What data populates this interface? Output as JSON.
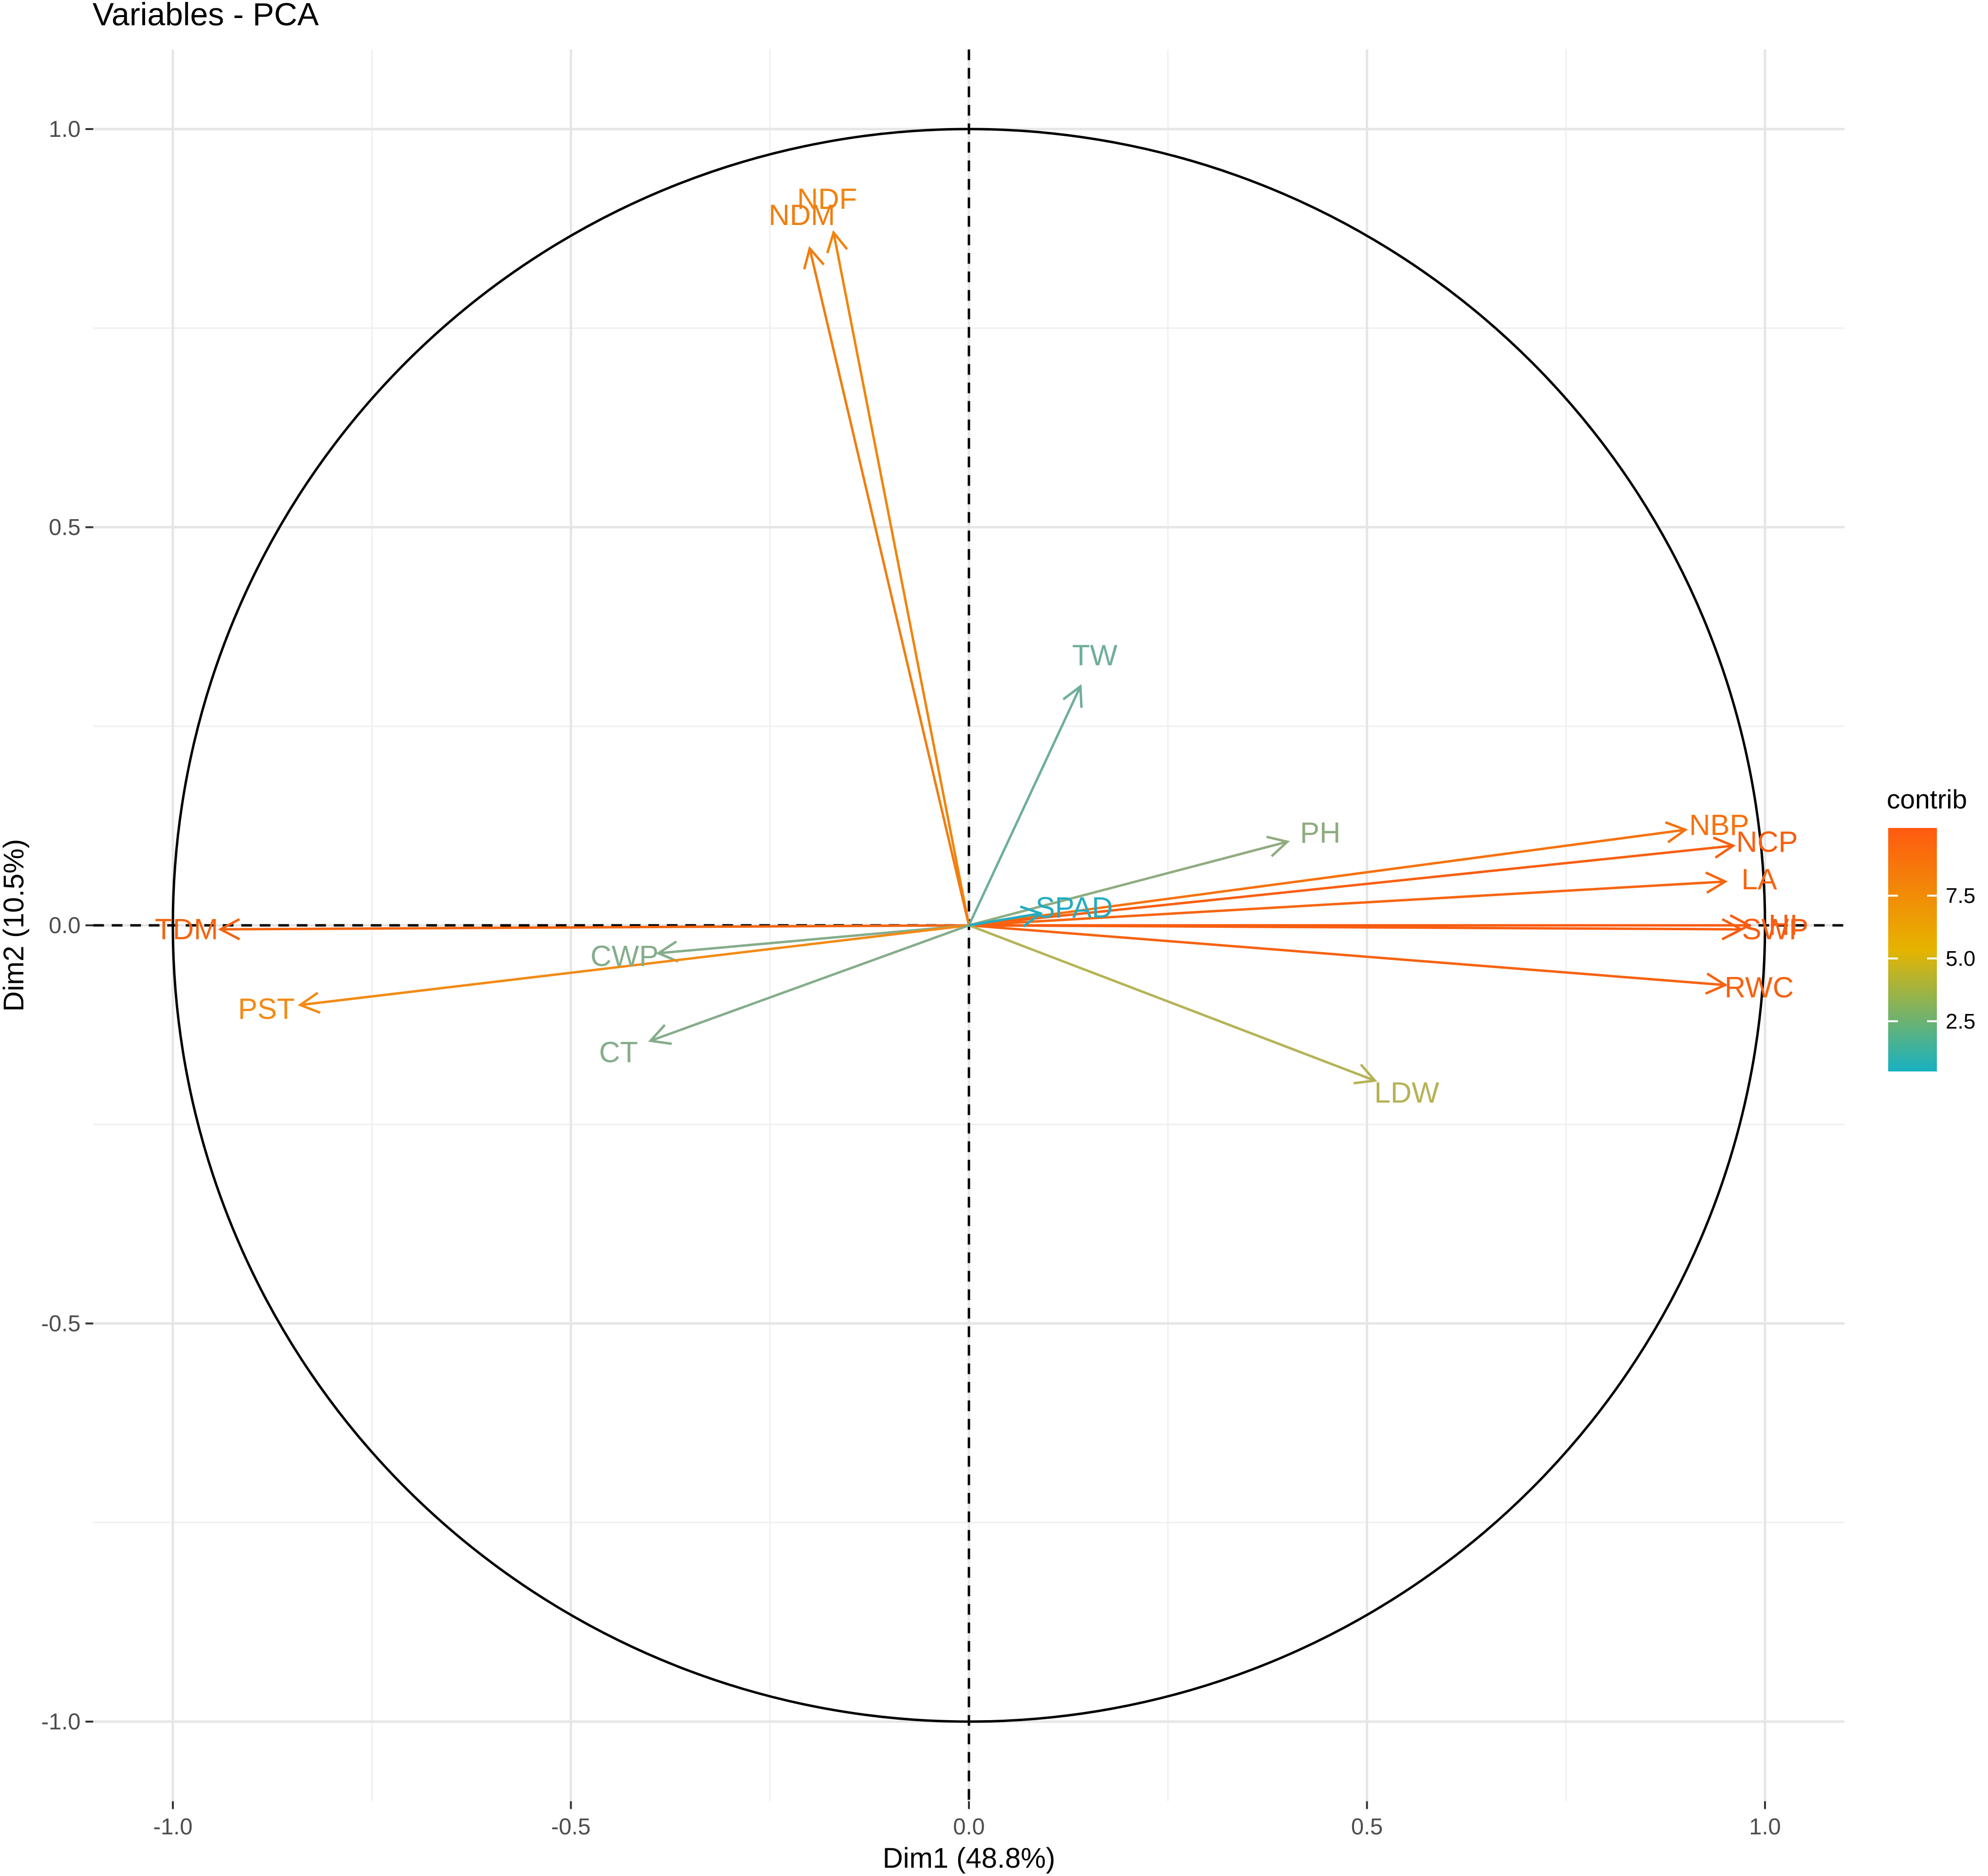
{
  "chart_data": {
    "type": "scatter",
    "title": "Variables - PCA",
    "xlabel": "Dim1 (48.8%)",
    "ylabel": "Dim2 (10.5%)",
    "xlim": [
      -1.1,
      1.1
    ],
    "ylim": [
      -1.1,
      1.1
    ],
    "xticks": [
      -1.0,
      -0.5,
      0.0,
      0.5,
      1.0
    ],
    "yticks": [
      -1.0,
      -0.5,
      0.0,
      0.5,
      1.0
    ],
    "grid": true,
    "legend": {
      "title": "contrib",
      "position": "right",
      "gradient": [
        "#17b1c2",
        "#e6b400",
        "#ff5a10"
      ],
      "ticks": [
        "2.5",
        "5.0",
        "7.5"
      ]
    },
    "variables": [
      {
        "name": "NDF",
        "x": -0.17,
        "y": 0.87,
        "color": "#f0840e"
      },
      {
        "name": "NDM",
        "x": -0.2,
        "y": 0.85,
        "color": "#f07d10"
      },
      {
        "name": "TW",
        "x": 0.14,
        "y": 0.3,
        "color": "#6fae98"
      },
      {
        "name": "PH",
        "x": 0.4,
        "y": 0.105,
        "color": "#8fac80"
      },
      {
        "name": "NBP",
        "x": 0.9,
        "y": 0.12,
        "color": "#f5720e"
      },
      {
        "name": "NCP",
        "x": 0.96,
        "y": 0.1,
        "color": "#f85e10"
      },
      {
        "name": "LA",
        "x": 0.95,
        "y": 0.055,
        "color": "#f66510"
      },
      {
        "name": "HI",
        "x": 0.98,
        "y": 0.0,
        "color": "#f85a10"
      },
      {
        "name": "SWP",
        "x": 0.97,
        "y": -0.005,
        "color": "#f85d10"
      },
      {
        "name": "RWC",
        "x": 0.95,
        "y": -0.075,
        "color": "#f66210"
      },
      {
        "name": "LDW",
        "x": 0.51,
        "y": -0.195,
        "color": "#b5b255"
      },
      {
        "name": "SPAD",
        "x": 0.09,
        "y": 0.015,
        "color": "#22acc0"
      },
      {
        "name": "TDM",
        "x": -0.94,
        "y": -0.005,
        "color": "#f26410"
      },
      {
        "name": "CWP",
        "x": -0.39,
        "y": -0.035,
        "color": "#85ad8b"
      },
      {
        "name": "PST",
        "x": -0.84,
        "y": -0.1,
        "color": "#f28a16"
      },
      {
        "name": "CT",
        "x": -0.4,
        "y": -0.145,
        "color": "#85ad8b"
      }
    ]
  }
}
